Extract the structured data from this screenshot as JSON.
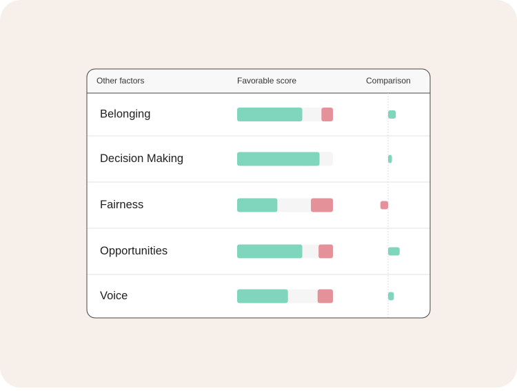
{
  "table": {
    "headers": [
      "Other factors",
      "Favorable score",
      "Comparison"
    ],
    "favorable_color": "#80d6bc",
    "unfavorable_color": "#e5919a",
    "rows": [
      {
        "label": "Belonging",
        "favorable": 68,
        "unfavorable": 12,
        "comparison": 8
      },
      {
        "label": "Decision Making",
        "favorable": 86,
        "unfavorable": 0,
        "comparison": 4
      },
      {
        "label": "Fairness",
        "favorable": 42,
        "unfavorable": 23,
        "comparison": -8
      },
      {
        "label": "Opportunities",
        "favorable": 68,
        "unfavorable": 15,
        "comparison": 12
      },
      {
        "label": "Voice",
        "favorable": 53,
        "unfavorable": 16,
        "comparison": 6
      }
    ]
  }
}
